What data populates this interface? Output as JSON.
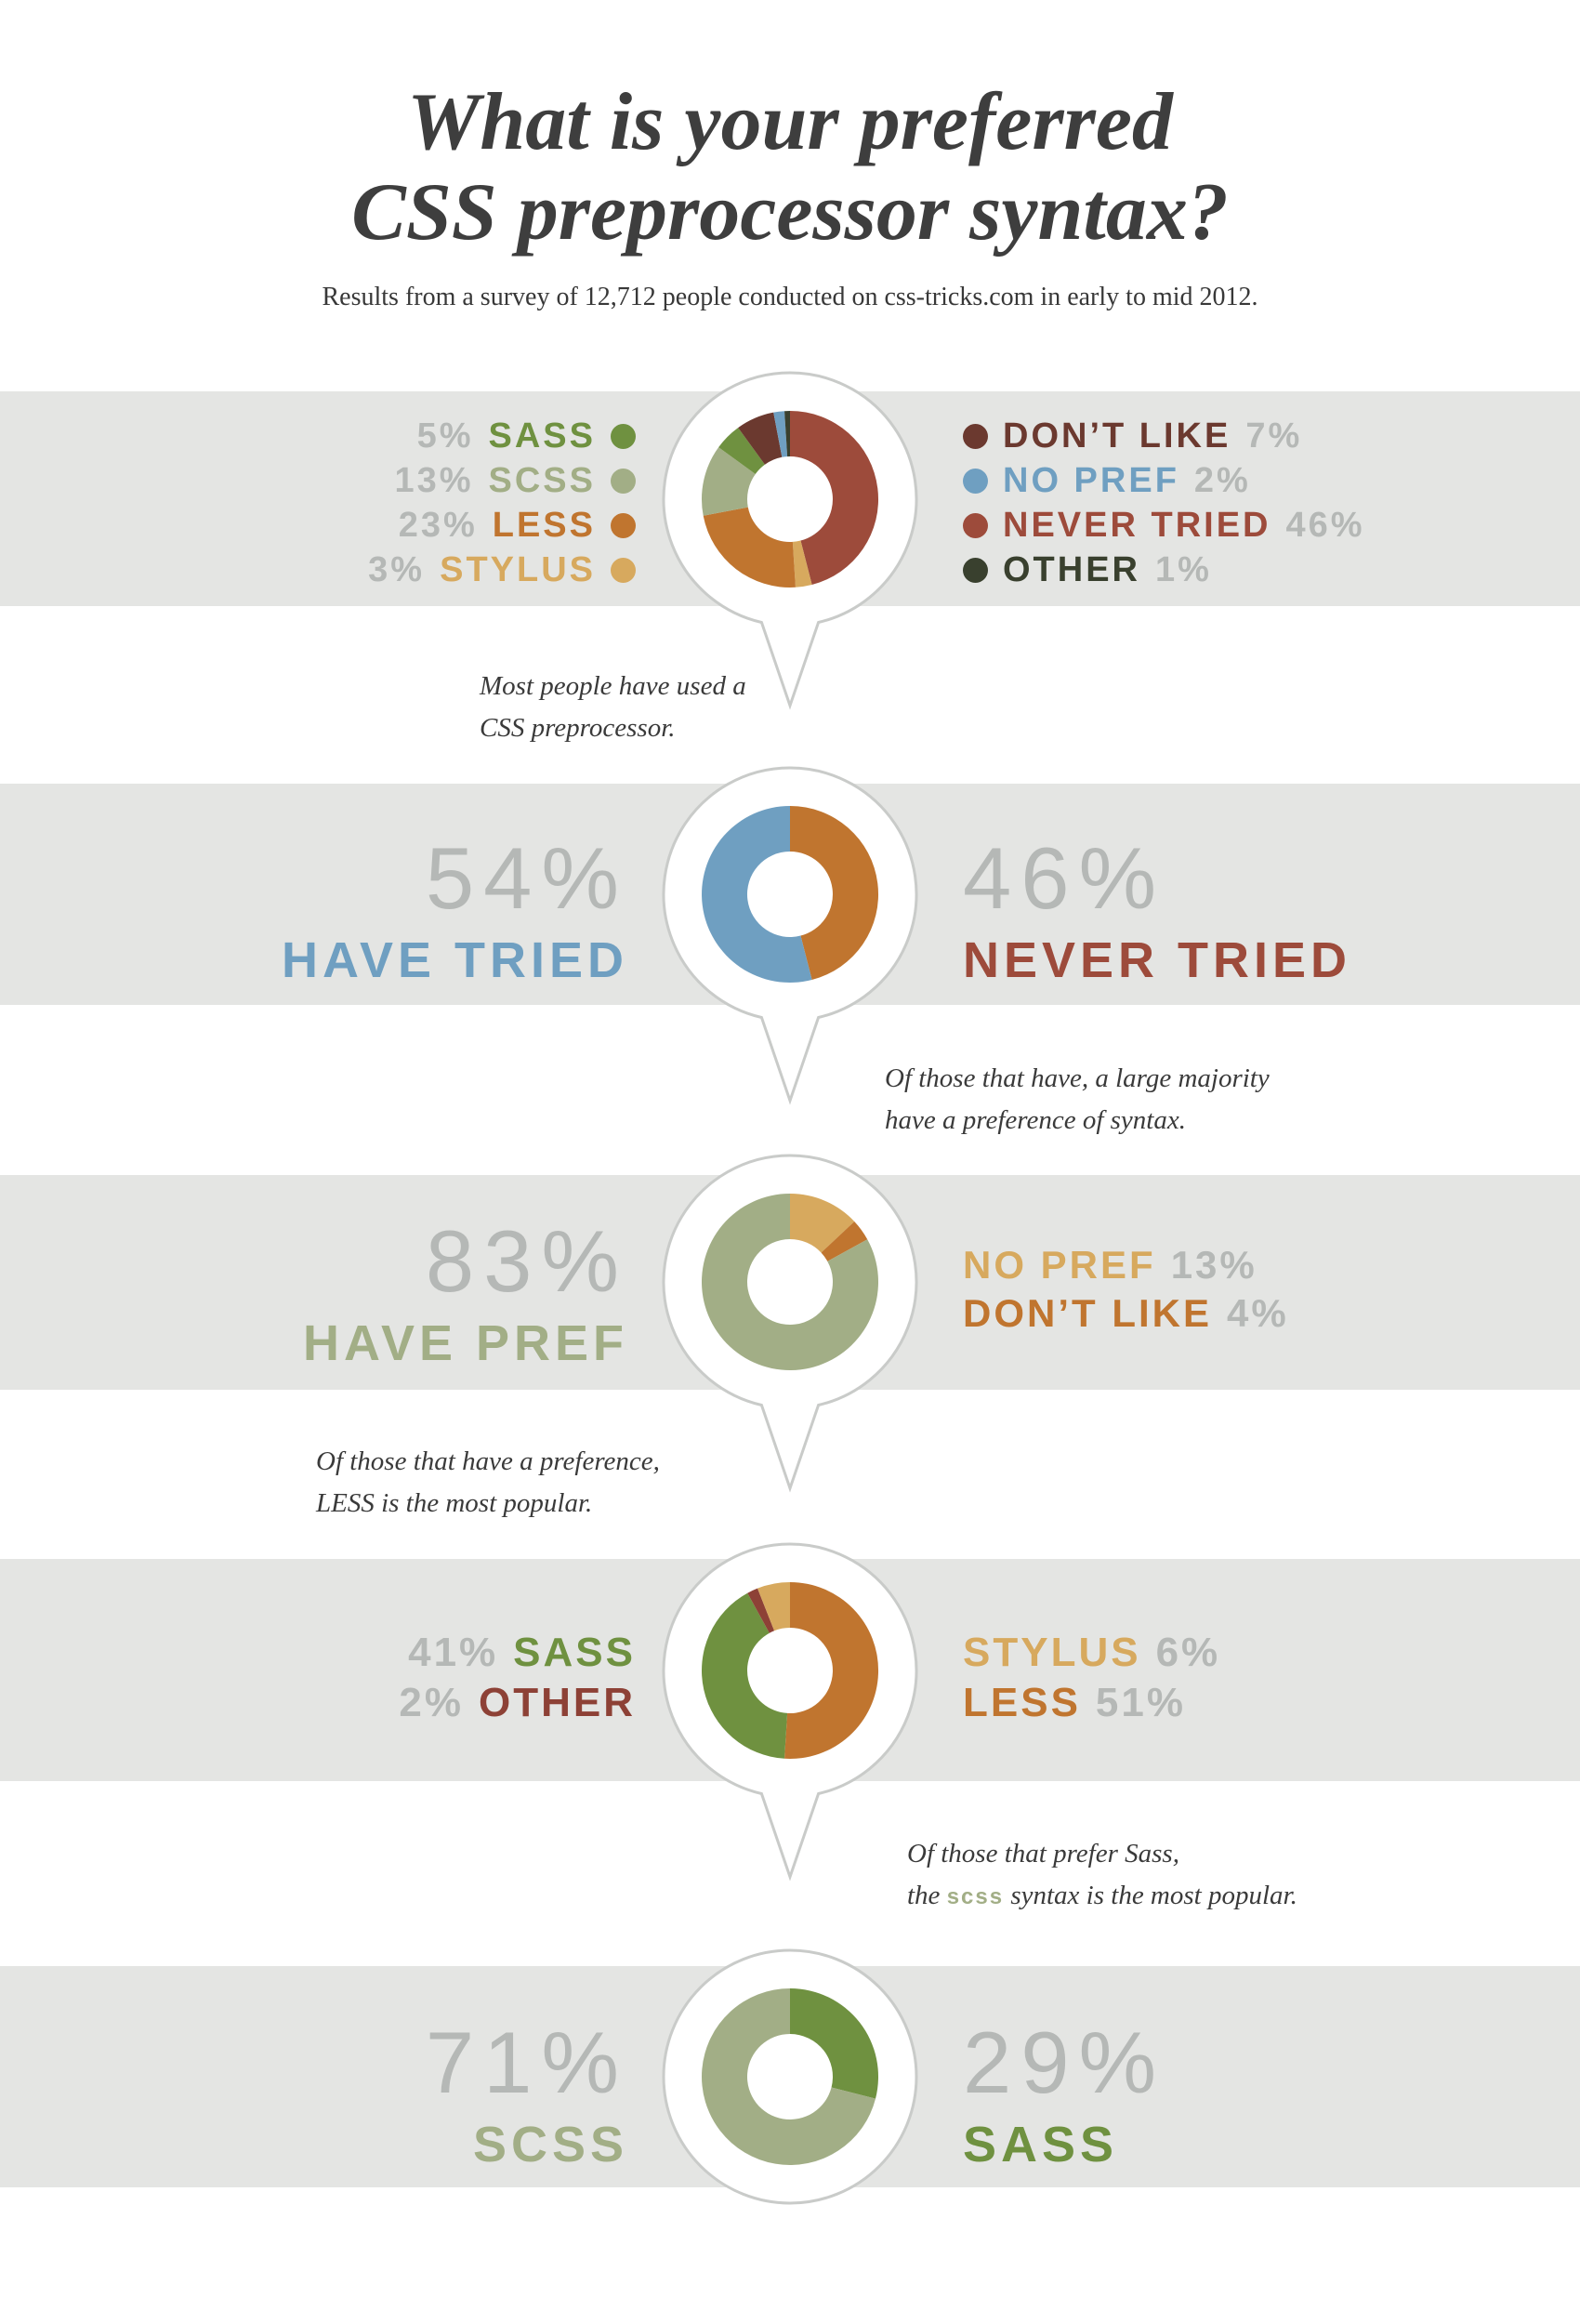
{
  "page": {
    "title_line1": "What is your preferred",
    "title_line2": "CSS preprocessor syntax?",
    "subtitle": "Results from a survey of 12,712 people conducted on css-tricks.com in early to mid 2012."
  },
  "colors": {
    "sass_green": "#6f9140",
    "scss_sage": "#a2ae86",
    "less_orange": "#c0752f",
    "stylus_tan": "#d7a95e",
    "dont_like_maroon": "#6b392f",
    "no_pref_blue": "#6f9fc1",
    "never_tried_brick": "#9d4b3b",
    "other_dark": "#39402e",
    "other_red": "#8d4136",
    "band_gray": "#e4e5e3",
    "ring_gray": "#c9cbc9",
    "muted_gray": "#b5b8b6",
    "text_dark": "#3e3e3e"
  },
  "chart_data": [
    {
      "type": "pie",
      "variant": "donut",
      "unit": "%",
      "start_angle_deg": -90,
      "direction": "clockwise",
      "segments": [
        {
          "label": "NEVER TRIED",
          "value": 46,
          "color": "never_tried_brick"
        },
        {
          "label": "STYLUS",
          "value": 3,
          "color": "stylus_tan"
        },
        {
          "label": "LESS",
          "value": 23,
          "color": "less_orange"
        },
        {
          "label": "SCSS",
          "value": 13,
          "color": "scss_sage"
        },
        {
          "label": "SASS",
          "value": 5,
          "color": "sass_green"
        },
        {
          "label": "DON’T LIKE",
          "value": 7,
          "color": "dont_like_maroon"
        },
        {
          "label": "NO PREF",
          "value": 2,
          "color": "no_pref_blue"
        },
        {
          "label": "OTHER",
          "value": 1,
          "color": "other_dark"
        }
      ]
    },
    {
      "type": "pie",
      "variant": "donut",
      "unit": "%",
      "start_angle_deg": -90,
      "direction": "clockwise",
      "segments": [
        {
          "label": "NEVER TRIED",
          "value": 46,
          "color": "less_orange"
        },
        {
          "label": "HAVE TRIED",
          "value": 54,
          "color": "no_pref_blue"
        }
      ]
    },
    {
      "type": "pie",
      "variant": "donut",
      "unit": "%",
      "start_angle_deg": -90,
      "direction": "clockwise",
      "segments": [
        {
          "label": "NO PREF",
          "value": 13,
          "color": "stylus_tan"
        },
        {
          "label": "DON’T LIKE",
          "value": 4,
          "color": "less_orange"
        },
        {
          "label": "HAVE PREF",
          "value": 83,
          "color": "scss_sage"
        }
      ]
    },
    {
      "type": "pie",
      "variant": "donut",
      "unit": "%",
      "start_angle_deg": -90,
      "direction": "clockwise",
      "segments": [
        {
          "label": "LESS",
          "value": 51,
          "color": "less_orange"
        },
        {
          "label": "SASS",
          "value": 41,
          "color": "sass_green"
        },
        {
          "label": "OTHER",
          "value": 2,
          "color": "other_red"
        },
        {
          "label": "STYLUS",
          "value": 6,
          "color": "stylus_tan"
        }
      ]
    },
    {
      "type": "pie",
      "variant": "donut",
      "unit": "%",
      "start_angle_deg": -90,
      "direction": "clockwise",
      "segments": [
        {
          "label": "SASS",
          "value": 29,
          "color": "sass_green"
        },
        {
          "label": "SCSS",
          "value": 71,
          "color": "scss_sage"
        }
      ]
    }
  ],
  "sections": [
    {
      "left_rows": [
        {
          "pct": "5%",
          "name": "SASS",
          "color": "sass_green"
        },
        {
          "pct": "13%",
          "name": "SCSS",
          "color": "scss_sage"
        },
        {
          "pct": "23%",
          "name": "LESS",
          "color": "less_orange"
        },
        {
          "pct": "3%",
          "name": "STYLUS",
          "color": "stylus_tan"
        }
      ],
      "right_rows": [
        {
          "name": "DON’T LIKE",
          "pct": "7%",
          "color": "dont_like_maroon"
        },
        {
          "name": "NO PREF",
          "pct": "2%",
          "color": "no_pref_blue"
        },
        {
          "name": "NEVER TRIED",
          "pct": "46%",
          "color": "never_tried_brick"
        },
        {
          "name": "OTHER",
          "pct": "1%",
          "color": "other_dark"
        }
      ],
      "callout": [
        "Most people have used a",
        "CSS preprocessor."
      ]
    },
    {
      "left_big": "54%",
      "left_label": "HAVE TRIED",
      "right_big": "46%",
      "right_label": "NEVER TRIED",
      "callout": [
        "Of those that have, a large majority",
        "have a preference of syntax."
      ]
    },
    {
      "left_big": "83%",
      "left_label": "HAVE PREF",
      "right_rows": [
        {
          "name": "NO PREF",
          "pct": "13%",
          "color": "stylus_tan"
        },
        {
          "name": "DON’T LIKE",
          "pct": "4%",
          "color": "less_orange"
        }
      ],
      "callout": [
        "Of those that have a preference,",
        "LESS is the most popular."
      ]
    },
    {
      "left_rows": [
        {
          "pct": "41%",
          "name": "SASS",
          "color": "sass_green"
        },
        {
          "pct": "2%",
          "name": "OTHER",
          "color": "other_red"
        }
      ],
      "right_rows": [
        {
          "name": "STYLUS",
          "pct": "6%",
          "color": "stylus_tan"
        },
        {
          "name": "LESS",
          "pct": "51%",
          "color": "less_orange"
        }
      ],
      "callout_line1": "Of those that prefer Sass,",
      "callout2_pre": "the ",
      "callout2_scss": "scss",
      "callout2_post": " syntax is the most popular."
    },
    {
      "left_big": "71%",
      "left_label": "SCSS",
      "right_big": "29%",
      "right_label": "SASS"
    }
  ]
}
